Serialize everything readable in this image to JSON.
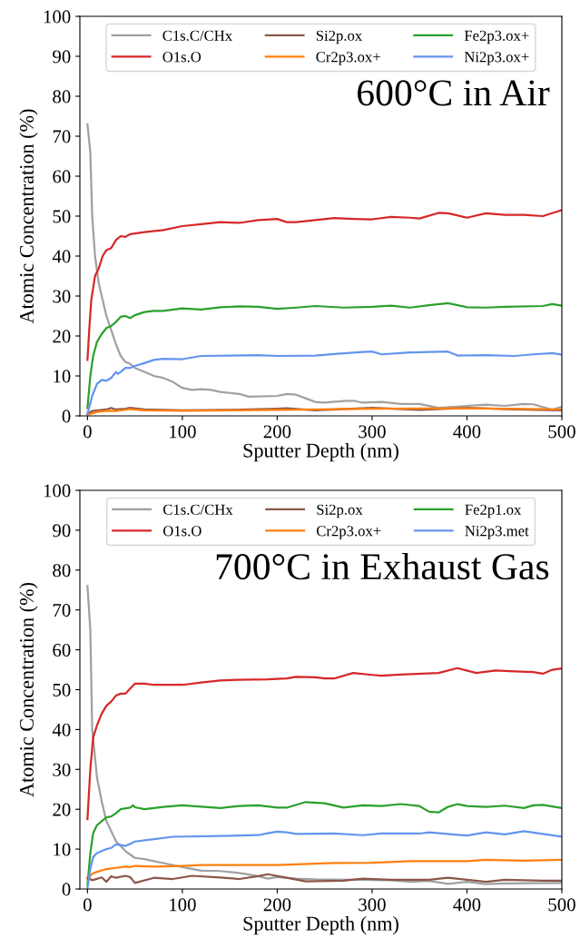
{
  "chart_data": [
    {
      "type": "line",
      "xlabel": "Sputter Depth (nm)",
      "ylabel": "Atomic Concentration (%)",
      "annotations": [
        "600°C in Air"
      ],
      "xlim": [
        -8,
        500
      ],
      "ylim": [
        0,
        100
      ],
      "xticks": [
        0,
        100,
        200,
        300,
        400,
        500
      ],
      "yticks": [
        0,
        10,
        20,
        30,
        40,
        50,
        60,
        70,
        80,
        90,
        100
      ],
      "grid": false,
      "legend": "top",
      "marker": "none",
      "line_style": "solid",
      "series": [
        {
          "name": "C1s.C/CHx",
          "color": "#a0a0a0",
          "x": [
            0,
            3,
            5,
            8,
            12,
            20,
            30,
            35,
            40,
            45,
            50,
            60,
            70,
            80,
            90,
            100,
            110,
            120,
            130,
            140,
            160,
            170,
            200,
            210,
            220,
            240,
            250,
            270,
            280,
            290,
            310,
            330,
            350,
            370,
            390,
            400,
            420,
            440,
            460,
            470,
            490,
            500
          ],
          "values": [
            73,
            66,
            50,
            40,
            33,
            25,
            18,
            15,
            13.5,
            13,
            12,
            11,
            10,
            9.5,
            8.5,
            7,
            6.5,
            6.7,
            6.5,
            6,
            5.5,
            4.8,
            5,
            5.5,
            5.3,
            3.5,
            3.3,
            3.7,
            3.8,
            3.3,
            3.5,
            3,
            3,
            2,
            2.3,
            2.5,
            2.8,
            2.5,
            3,
            2.9,
            1.5,
            2.3
          ]
        },
        {
          "name": "O1s.O",
          "color": "#d62728",
          "x": [
            0,
            2,
            4,
            8,
            12,
            16,
            20,
            25,
            30,
            35,
            40,
            45,
            60,
            80,
            100,
            120,
            140,
            160,
            180,
            200,
            210,
            220,
            240,
            260,
            280,
            300,
            320,
            340,
            350,
            370,
            380,
            400,
            420,
            440,
            460,
            480,
            500
          ],
          "values": [
            14,
            22,
            29,
            35,
            37,
            40,
            41.5,
            42,
            44,
            45,
            44.8,
            45.5,
            46,
            46.5,
            47.5,
            48,
            48.5,
            48.3,
            49,
            49.3,
            48.5,
            48.5,
            49,
            49.5,
            49.3,
            49.2,
            49.8,
            49.6,
            49.4,
            50.8,
            50.7,
            49.6,
            50.7,
            50.3,
            50.3,
            50,
            51.5
          ]
        },
        {
          "name": "Si2p.ox",
          "color": "#8c564b",
          "x": [
            0,
            5,
            20,
            25,
            30,
            40,
            45,
            60,
            100,
            150,
            200,
            210,
            240,
            300,
            350,
            400,
            450,
            500
          ],
          "values": [
            0.5,
            1.2,
            1.6,
            2,
            1.6,
            1.8,
            2,
            1.6,
            1.4,
            1.5,
            1.8,
            1.9,
            1.4,
            2,
            1.5,
            2,
            1.6,
            1.4
          ]
        },
        {
          "name": "Cr2p3.ox+",
          "color": "#ff7f0e",
          "x": [
            0,
            10,
            20,
            30,
            45,
            60,
            100,
            200,
            300,
            400,
            500
          ],
          "values": [
            0.3,
            1,
            1.3,
            1.2,
            1.7,
            1.4,
            1.3,
            1.5,
            1.8,
            1.9,
            1.6
          ]
        },
        {
          "name": "Fe2p3.ox+",
          "color": "#2ca02c",
          "x": [
            0,
            3,
            6,
            10,
            15,
            20,
            25,
            30,
            35,
            40,
            45,
            50,
            60,
            70,
            80,
            100,
            120,
            140,
            160,
            180,
            200,
            220,
            240,
            270,
            300,
            320,
            340,
            360,
            380,
            400,
            420,
            440,
            480,
            490,
            500
          ],
          "values": [
            2,
            10,
            15,
            18.5,
            20.5,
            22,
            22.5,
            23.5,
            24.8,
            25,
            24.5,
            25.2,
            26,
            26.3,
            26.3,
            26.9,
            26.6,
            27.2,
            27.4,
            27.3,
            26.8,
            27.1,
            27.5,
            27.1,
            27.3,
            27.6,
            27.1,
            27.7,
            28.2,
            27.2,
            27.1,
            27.3,
            27.5,
            28,
            27.6
          ]
        },
        {
          "name": "Ni2p3.ox+",
          "color": "#6495ed",
          "x": [
            0,
            5,
            10,
            15,
            20,
            25,
            30,
            32,
            35,
            40,
            45,
            50,
            60,
            70,
            80,
            100,
            120,
            150,
            180,
            200,
            240,
            260,
            290,
            300,
            310,
            340,
            380,
            390,
            420,
            450,
            470,
            490,
            500
          ],
          "values": [
            0.5,
            5,
            8,
            9,
            8.8,
            9.5,
            11,
            10.5,
            11,
            12,
            12,
            12.5,
            13.2,
            14,
            14.3,
            14.2,
            15,
            15.1,
            15.2,
            15,
            15.1,
            15.5,
            16,
            16.1,
            15.4,
            15.9,
            16.1,
            15.1,
            15.2,
            15,
            15.4,
            15.7,
            15.3
          ]
        }
      ]
    },
    {
      "type": "line",
      "xlabel": "Sputter Depth (nm)",
      "ylabel": "Atomic Concentration (%)",
      "annotations": [
        "700°C in Exhaust Gas"
      ],
      "xlim": [
        -8,
        500
      ],
      "ylim": [
        0,
        100
      ],
      "xticks": [
        0,
        100,
        200,
        300,
        400,
        500
      ],
      "yticks": [
        0,
        10,
        20,
        30,
        40,
        50,
        60,
        70,
        80,
        90,
        100
      ],
      "grid": false,
      "legend": "top",
      "marker": "none",
      "line_style": "solid",
      "series": [
        {
          "name": "C1s.C/CHx",
          "color": "#a0a0a0",
          "x": [
            0,
            3,
            5,
            8,
            10,
            15,
            20,
            30,
            40,
            50,
            60,
            80,
            100,
            120,
            140,
            160,
            180,
            190,
            200,
            220,
            240,
            280,
            320,
            340,
            360,
            380,
            400,
            420,
            440,
            500
          ],
          "values": [
            76,
            65,
            40,
            33,
            28,
            22,
            17,
            12,
            9.5,
            7.8,
            7.5,
            6.5,
            5.5,
            4.6,
            4.5,
            4,
            3.2,
            2.6,
            3,
            2.6,
            2.4,
            2.3,
            2.2,
            1.8,
            2,
            1.3,
            1.8,
            1.2,
            1.4,
            1.5
          ]
        },
        {
          "name": "O1s.O",
          "color": "#d62728",
          "x": [
            0,
            3,
            6,
            10,
            15,
            20,
            25,
            30,
            35,
            40,
            45,
            50,
            60,
            70,
            100,
            120,
            140,
            160,
            190,
            210,
            220,
            240,
            250,
            260,
            280,
            300,
            310,
            330,
            370,
            390,
            410,
            430,
            450,
            470,
            480,
            490,
            500
          ],
          "values": [
            17.5,
            30,
            38,
            41,
            44,
            46,
            47,
            48.5,
            49,
            49,
            50.3,
            51.5,
            51.5,
            51.2,
            51.2,
            51.8,
            52.3,
            52.5,
            52.6,
            52.8,
            53.2,
            53.1,
            52.8,
            52.8,
            54.2,
            53.7,
            53.5,
            53.8,
            54.2,
            55.4,
            54.2,
            54.8,
            54.6,
            54.4,
            54,
            55,
            55.3
          ]
        },
        {
          "name": "Si2p.ox",
          "color": "#8c564b",
          "x": [
            0,
            5,
            15,
            20,
            25,
            30,
            40,
            45,
            50,
            70,
            90,
            110,
            140,
            160,
            180,
            190,
            210,
            230,
            270,
            290,
            320,
            360,
            380,
            420,
            440,
            480,
            500
          ],
          "values": [
            2.8,
            2.2,
            2.9,
            1.8,
            3.2,
            2.8,
            3.3,
            3,
            1.5,
            2.8,
            2.5,
            3.3,
            2.9,
            2.5,
            3.2,
            3.7,
            2.8,
            1.9,
            2.1,
            2.6,
            2.3,
            2.3,
            2.8,
            1.8,
            2.3,
            2.1,
            2.1
          ]
        },
        {
          "name": "Cr2p3.ox+",
          "color": "#ff7f0e",
          "x": [
            0,
            5,
            10,
            20,
            30,
            40,
            45,
            50,
            70,
            100,
            120,
            160,
            200,
            260,
            300,
            340,
            400,
            420,
            460,
            500
          ],
          "values": [
            2.5,
            3.8,
            4.3,
            5,
            5.3,
            5.6,
            5.5,
            5.8,
            5.6,
            5.8,
            6,
            6,
            6,
            6.5,
            6.6,
            7,
            7,
            7.3,
            7.1,
            7.3
          ]
        },
        {
          "name": "Fe2p1.ox",
          "color": "#2ca02c",
          "x": [
            0,
            3,
            6,
            10,
            15,
            20,
            25,
            30,
            35,
            45,
            48,
            50,
            60,
            80,
            100,
            140,
            160,
            180,
            200,
            210,
            230,
            250,
            270,
            290,
            310,
            330,
            350,
            360,
            370,
            380,
            390,
            400,
            420,
            440,
            460,
            470,
            480,
            500
          ],
          "values": [
            1,
            9,
            14,
            16,
            17,
            18,
            18.2,
            19,
            20,
            20.4,
            21,
            20.5,
            20,
            20.6,
            21,
            20.3,
            20.8,
            21,
            20.4,
            20.4,
            21.8,
            21.5,
            20.4,
            21,
            20.8,
            21.3,
            20.8,
            19.4,
            19.2,
            20.6,
            21.3,
            20.8,
            20.6,
            20.9,
            20.3,
            21,
            21.1,
            20.3
          ]
        },
        {
          "name": "Ni2p3.met",
          "color": "#6495ed",
          "x": [
            0,
            3,
            6,
            10,
            15,
            20,
            25,
            30,
            35,
            40,
            45,
            50,
            70,
            90,
            140,
            180,
            190,
            200,
            210,
            220,
            260,
            290,
            310,
            350,
            360,
            400,
            420,
            440,
            460,
            480,
            500
          ],
          "values": [
            0.3,
            5,
            8,
            9,
            9.5,
            10,
            10.3,
            11.2,
            11,
            10.8,
            11.3,
            11.9,
            12.5,
            13.1,
            13.3,
            13.5,
            14,
            14.4,
            14.2,
            13.8,
            13.9,
            13.5,
            13.9,
            13.9,
            14.2,
            13.4,
            14.2,
            13.7,
            14.5,
            13.8,
            13.1
          ]
        }
      ]
    }
  ]
}
